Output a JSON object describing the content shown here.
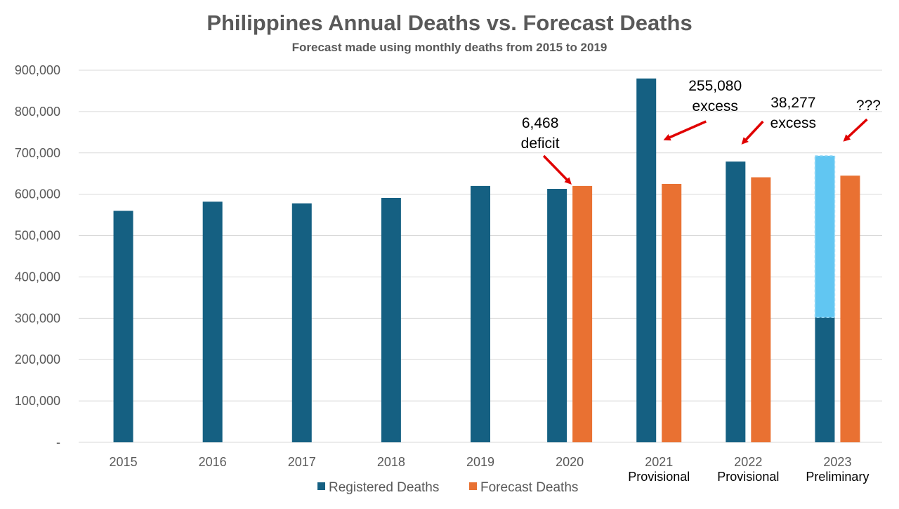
{
  "chart_data": {
    "type": "bar",
    "title": "Philippines Annual Deaths vs. Forecast Deaths",
    "subtitle": "Forecast made using monthly deaths from 2015 to 2019",
    "categories": [
      "2015",
      "2016",
      "2017",
      "2018",
      "2019",
      "2020",
      "2021",
      "2022",
      "2023"
    ],
    "category_sublabels": [
      "",
      "",
      "",
      "",
      "",
      "",
      "Provisional",
      "Provisional",
      "Preliminary"
    ],
    "ylim": [
      0,
      900000
    ],
    "yticks": [
      0,
      100000,
      200000,
      300000,
      400000,
      500000,
      600000,
      700000,
      800000,
      900000
    ],
    "ytick_labels": [
      "-",
      "100,000",
      "200,000",
      "300,000",
      "400,000",
      "500,000",
      "600,000",
      "700,000",
      "800,000",
      "900,000"
    ],
    "grid": true,
    "legend_position": "bottom",
    "series": [
      {
        "name": "Registered Deaths",
        "color": "#156082",
        "values": [
          560000,
          582000,
          578000,
          591000,
          620000,
          613000,
          880000,
          679000,
          302000
        ]
      },
      {
        "name": "Forecast Deaths",
        "color": "#E97132",
        "values": [
          null,
          null,
          null,
          null,
          null,
          620000,
          625000,
          641000,
          645000
        ]
      }
    ],
    "projected_extension": {
      "category": "2023",
      "from": 302000,
      "to": 693000,
      "color": "#61C6F2",
      "border_style": "dashed"
    },
    "annotations": [
      {
        "category": "2020",
        "lines": [
          "6,468",
          "deficit"
        ]
      },
      {
        "category": "2021",
        "lines": [
          "255,080",
          "excess"
        ]
      },
      {
        "category": "2022",
        "lines": [
          "38,277",
          "excess"
        ]
      },
      {
        "category": "2023",
        "lines": [
          "???"
        ]
      }
    ],
    "arrow_color": "#E00000"
  }
}
